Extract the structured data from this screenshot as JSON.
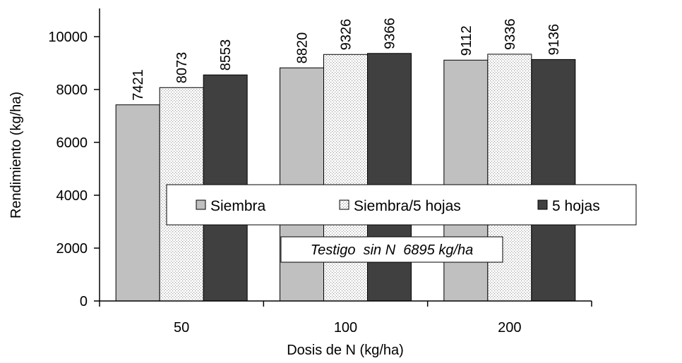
{
  "chart_data": {
    "type": "bar",
    "categories": [
      "50",
      "100",
      "200"
    ],
    "series": [
      {
        "name": "Siembra",
        "values": [
          7421,
          8820,
          9112
        ],
        "color": "#c0c0c0",
        "pattern": "solid"
      },
      {
        "name": "Siembra/5 hojas",
        "values": [
          8073,
          9326,
          9336
        ],
        "color": "#ffffff",
        "pattern": "dotted"
      },
      {
        "name": "5 hojas",
        "values": [
          8553,
          9366,
          9136
        ],
        "color": "#404040",
        "pattern": "solid"
      }
    ],
    "title": "",
    "xlabel": "Dosis de N (kg/ha)",
    "ylabel": "Rendimiento (kg/ha)",
    "ylim": [
      0,
      10000
    ],
    "yticks": [
      0,
      2000,
      4000,
      6000,
      8000,
      10000
    ],
    "grid": false,
    "legend_position": "middle",
    "annotation": "Testigo  sin N  6895 kg/ha"
  }
}
